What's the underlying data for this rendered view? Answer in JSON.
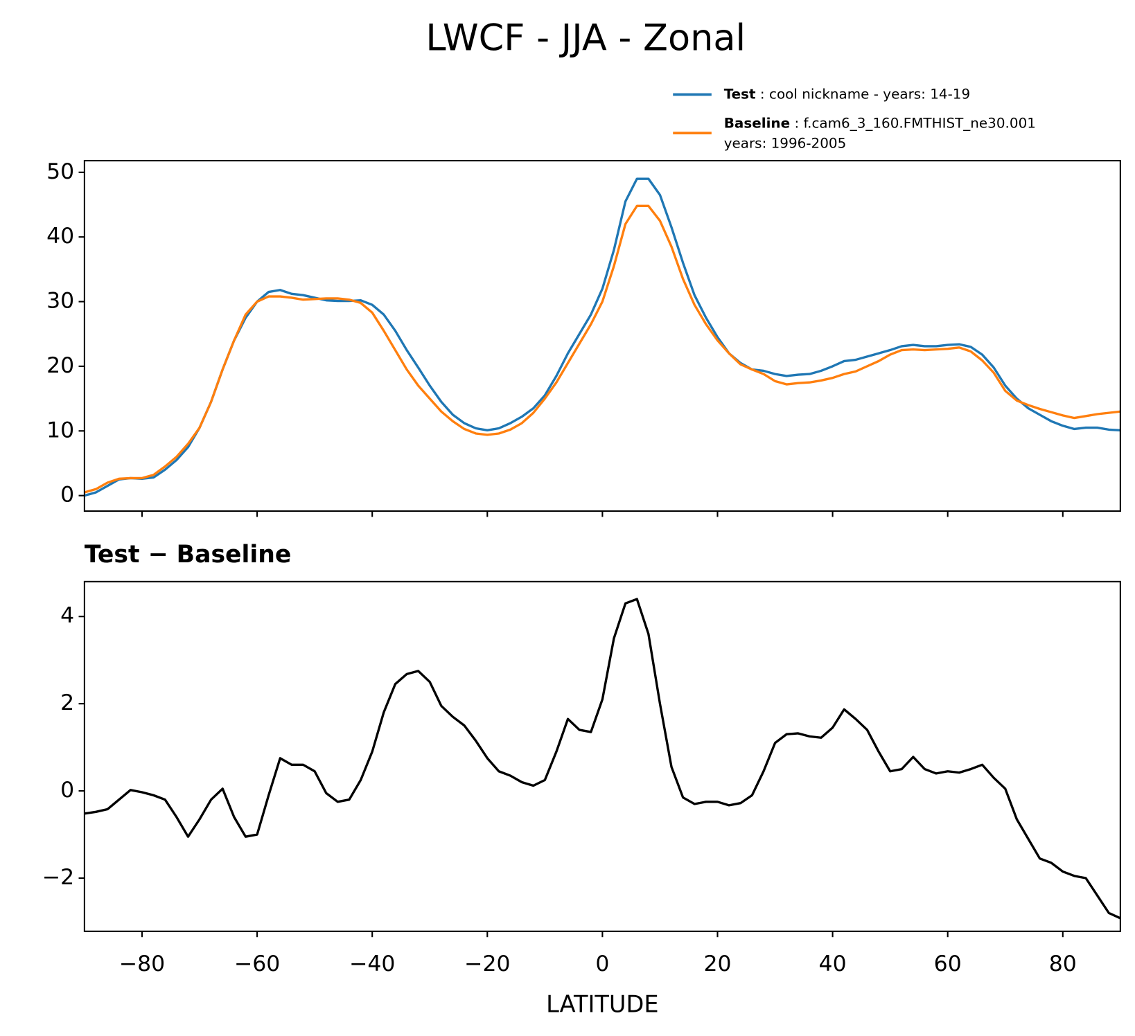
{
  "title": "LWCF - JJA - Zonal",
  "chart_data": [
    {
      "type": "line",
      "x": [
        -90,
        -88,
        -86,
        -84,
        -82,
        -80,
        -78,
        -76,
        -74,
        -72,
        -70,
        -68,
        -66,
        -64,
        -62,
        -60,
        -58,
        -56,
        -54,
        -52,
        -50,
        -48,
        -46,
        -44,
        -42,
        -40,
        -38,
        -36,
        -34,
        -32,
        -30,
        -28,
        -26,
        -24,
        -22,
        -20,
        -18,
        -16,
        -14,
        -12,
        -10,
        -8,
        -6,
        -4,
        -2,
        0,
        2,
        4,
        6,
        8,
        10,
        12,
        14,
        16,
        18,
        20,
        22,
        24,
        26,
        28,
        30,
        32,
        34,
        36,
        38,
        40,
        42,
        44,
        46,
        48,
        50,
        52,
        54,
        56,
        58,
        60,
        62,
        64,
        66,
        68,
        70,
        72,
        74,
        76,
        78,
        80,
        82,
        84,
        86,
        88,
        90
      ],
      "series": [
        {
          "name": "Test",
          "detail": [
            "cool nickname - years: 14-19"
          ],
          "color": "#1f77b4",
          "values": [
            0,
            0.5,
            1.5,
            2.5,
            2.7,
            2.6,
            2.8,
            4,
            5.5,
            7.5,
            10.5,
            14.5,
            19.5,
            24,
            27.5,
            30,
            31.5,
            31.8,
            31.2,
            31,
            30.6,
            30.2,
            30.1,
            30.1,
            30.2,
            29.5,
            28,
            25.5,
            22.5,
            19.8,
            17,
            14.5,
            12.5,
            11.2,
            10.4,
            10.1,
            10.4,
            11.2,
            12.2,
            13.5,
            15.5,
            18.5,
            22,
            25,
            28,
            32,
            38,
            45.5,
            49,
            49,
            46.5,
            41.5,
            36,
            31,
            27.5,
            24.5,
            22,
            20.5,
            19.5,
            19.3,
            18.8,
            18.5,
            18.7,
            18.8,
            19.3,
            20,
            20.8,
            21,
            21.5,
            22,
            22.5,
            23.1,
            23.3,
            23.1,
            23.1,
            23.3,
            23.4,
            23,
            21.8,
            19.8,
            17,
            15,
            13.5,
            12.5,
            11.5,
            10.8,
            10.3,
            10.5,
            10.5,
            10.2,
            10.1
          ]
        },
        {
          "name": "Baseline",
          "detail": [
            "f.cam6_3_160.FMTHIST_ne30.001",
            "years: 1996-2005"
          ],
          "color": "#ff7f0e",
          "values": [
            0.5,
            1,
            2,
            2.6,
            2.7,
            2.7,
            3.2,
            4.5,
            6,
            8,
            10.5,
            14.5,
            19.5,
            24,
            28,
            30,
            30.8,
            30.8,
            30.6,
            30.3,
            30.4,
            30.5,
            30.5,
            30.3,
            29.8,
            28.3,
            25.5,
            22.5,
            19.5,
            17,
            15,
            13,
            11.5,
            10.3,
            9.6,
            9.4,
            9.6,
            10.2,
            11.2,
            12.8,
            15,
            17.5,
            20.5,
            23.5,
            26.5,
            30,
            35.5,
            42,
            44.8,
            44.8,
            42.5,
            38.5,
            33.5,
            29.5,
            26.5,
            24,
            22,
            20.3,
            19.5,
            18.8,
            17.7,
            17.2,
            17.4,
            17.5,
            17.8,
            18.2,
            18.8,
            19.2,
            20,
            20.8,
            21.8,
            22.5,
            22.6,
            22.5,
            22.6,
            22.7,
            22.9,
            22.3,
            20.9,
            19,
            16.2,
            14.7,
            14,
            13.4,
            12.9,
            12.4,
            12,
            12.3,
            12.6,
            12.8,
            13
          ]
        }
      ],
      "xlim": [
        -90,
        90
      ],
      "xticks": [
        -80,
        -60,
        -40,
        -20,
        0,
        20,
        40,
        60,
        80
      ],
      "ylim": [
        -2.4,
        51.8
      ],
      "yticks": [
        0,
        10,
        20,
        30,
        40,
        50
      ]
    },
    {
      "type": "line",
      "title": "Test − Baseline",
      "xlabel": "LATITUDE",
      "x": [
        -90,
        -88,
        -86,
        -84,
        -82,
        -80,
        -78,
        -76,
        -74,
        -72,
        -70,
        -68,
        -66,
        -64,
        -62,
        -60,
        -58,
        -56,
        -54,
        -52,
        -50,
        -48,
        -46,
        -44,
        -42,
        -40,
        -38,
        -36,
        -34,
        -32,
        -30,
        -28,
        -26,
        -24,
        -22,
        -20,
        -18,
        -16,
        -14,
        -12,
        -10,
        -8,
        -6,
        -4,
        -2,
        0,
        2,
        4,
        6,
        8,
        10,
        12,
        14,
        16,
        18,
        20,
        22,
        24,
        26,
        28,
        30,
        32,
        34,
        36,
        38,
        40,
        42,
        44,
        46,
        48,
        50,
        52,
        54,
        56,
        58,
        60,
        62,
        64,
        66,
        68,
        70,
        72,
        74,
        76,
        78,
        80,
        82,
        84,
        86,
        88,
        90
      ],
      "series": [
        {
          "color": "#000000",
          "values": [
            -0.52,
            -0.48,
            -0.42,
            -0.2,
            0.02,
            -0.03,
            -0.1,
            -0.2,
            -0.6,
            -1.05,
            -0.65,
            -0.2,
            0.05,
            -0.6,
            -1.05,
            -1,
            -0.1,
            0.75,
            0.6,
            0.6,
            0.45,
            -0.05,
            -0.25,
            -0.2,
            0.25,
            0.9,
            1.8,
            2.45,
            2.68,
            2.75,
            2.5,
            1.95,
            1.7,
            1.5,
            1.15,
            0.75,
            0.45,
            0.35,
            0.2,
            0.12,
            0.25,
            0.9,
            1.65,
            1.4,
            1.35,
            2.1,
            3.5,
            4.3,
            4.4,
            3.6,
            2,
            0.55,
            -0.15,
            -0.3,
            -0.25,
            -0.25,
            -0.33,
            -0.28,
            -0.1,
            0.45,
            1.1,
            1.3,
            1.32,
            1.25,
            1.22,
            1.45,
            1.87,
            1.65,
            1.4,
            0.9,
            0.45,
            0.5,
            0.78,
            0.5,
            0.4,
            0.45,
            0.42,
            0.5,
            0.6,
            0.3,
            0.05,
            -0.65,
            -1.1,
            -1.55,
            -1.65,
            -1.85,
            -1.95,
            -2,
            -2.4,
            -2.8,
            -2.92
          ]
        }
      ],
      "xlim": [
        -90,
        90
      ],
      "xticks": [
        {
          "value": -80,
          "label": "−80"
        },
        {
          "value": -60,
          "label": "−60"
        },
        {
          "value": -40,
          "label": "−40"
        },
        {
          "value": -20,
          "label": "−20"
        },
        0,
        20,
        40,
        60,
        80
      ],
      "ylim": [
        -3.22,
        4.8
      ],
      "yticks": [
        {
          "value": -2,
          "label": "−2"
        },
        0,
        2,
        4
      ]
    }
  ]
}
